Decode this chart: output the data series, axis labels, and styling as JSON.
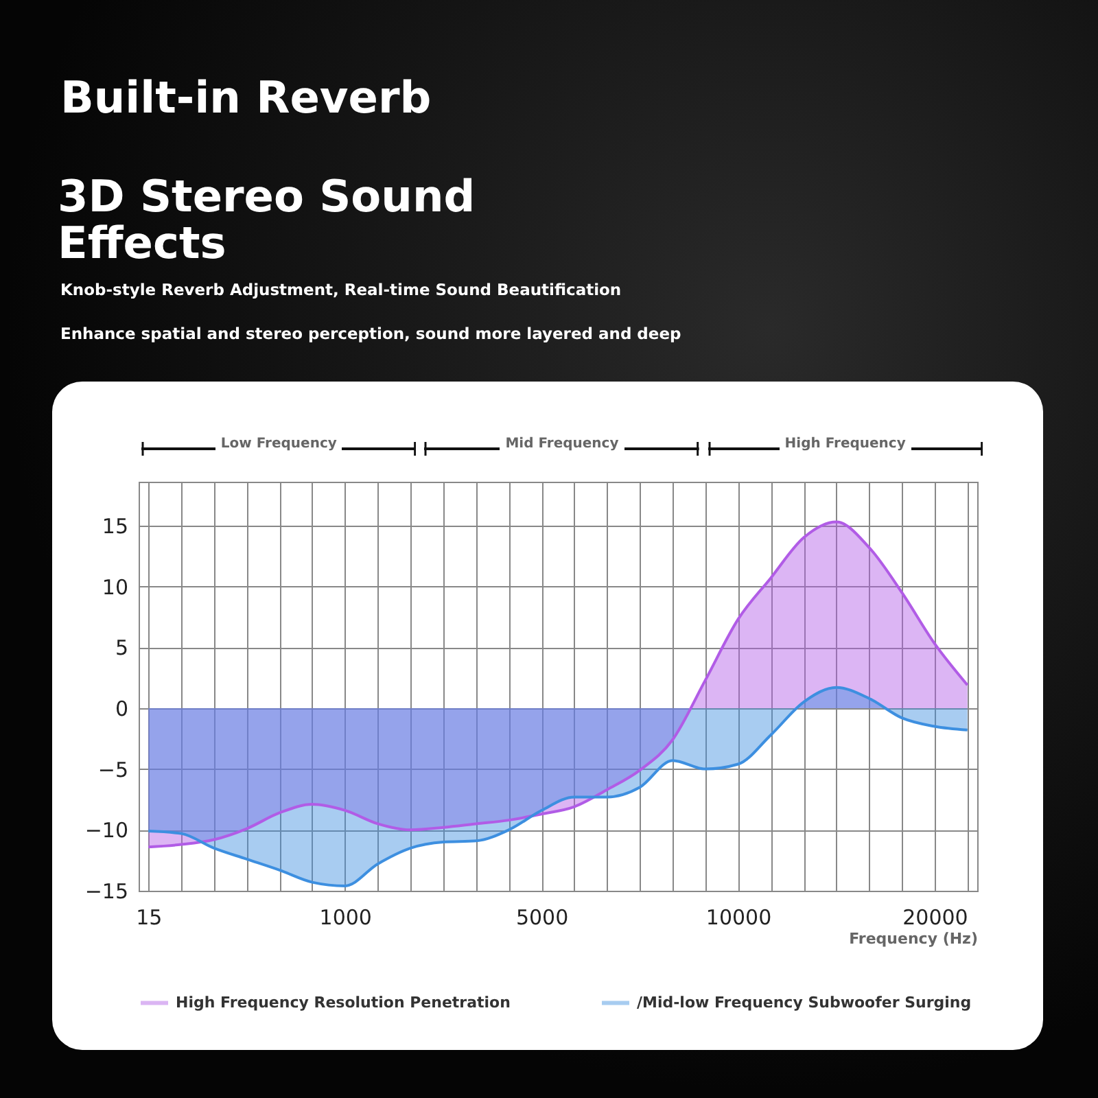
{
  "chart_data": {
    "type": "area",
    "title": "Built-in Reverb",
    "subtitle": "3D Stereo Sound Effects",
    "annotations": [
      "Knob-style Reverb Adjustment, Real-time Sound Beautification",
      "Enhance spatial and stereo perception, sound more layered and deep",
      "Low Frequency",
      "Mid Frequency",
      "High Frequency"
    ],
    "xlabel": "Frequency (Hz)",
    "categories": [
      "15",
      null,
      null,
      null,
      null,
      null,
      "1000",
      null,
      null,
      null,
      null,
      null,
      "5000",
      null,
      null,
      null,
      null,
      null,
      "10000",
      null,
      null,
      null,
      null,
      null,
      "20000",
      null
    ],
    "series": [
      {
        "name": "High Frequency Resolution Penetration",
        "color": "#b15ce6",
        "values": [
          -11.4,
          -11.2,
          -10.8,
          -9.9,
          -8.6,
          -7.9,
          -8.4,
          -9.5,
          -10.0,
          -9.8,
          -9.5,
          -9.2,
          -8.7,
          -8.1,
          -6.7,
          -5.1,
          -2.6,
          2.3,
          7.3,
          10.7,
          14.0,
          15.3,
          13.2,
          9.5,
          5.3,
          1.9
        ]
      },
      {
        "name": "/Mid-low Frequency Subwoofer Surging",
        "color": "#3d8fe0",
        "values": [
          -10.1,
          -10.3,
          -11.5,
          -12.4,
          -13.3,
          -14.3,
          -14.6,
          -12.8,
          -11.5,
          -11.0,
          -10.9,
          -10.0,
          -8.4,
          -7.3,
          -7.3,
          -6.5,
          -4.3,
          -5.0,
          -4.6,
          -2.2,
          0.5,
          1.7,
          0.8,
          -0.8,
          -1.5,
          -1.8
        ]
      }
    ],
    "ylim": [
      -15,
      18.6
    ],
    "yticks": [
      -15,
      -10,
      -5,
      0,
      5,
      10,
      15
    ],
    "grid": true,
    "legend": "bottom"
  }
}
